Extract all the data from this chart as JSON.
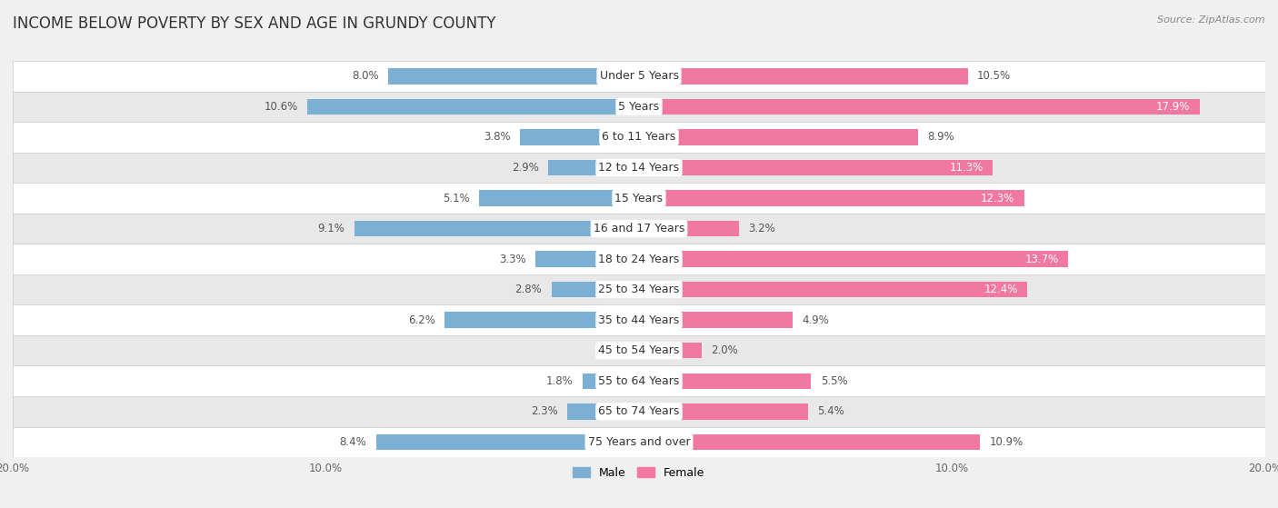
{
  "title": "INCOME BELOW POVERTY BY SEX AND AGE IN GRUNDY COUNTY",
  "source": "Source: ZipAtlas.com",
  "categories": [
    "Under 5 Years",
    "5 Years",
    "6 to 11 Years",
    "12 to 14 Years",
    "15 Years",
    "16 and 17 Years",
    "18 to 24 Years",
    "25 to 34 Years",
    "35 to 44 Years",
    "45 to 54 Years",
    "55 to 64 Years",
    "65 to 74 Years",
    "75 Years and over"
  ],
  "male": [
    8.0,
    10.6,
    3.8,
    2.9,
    5.1,
    9.1,
    3.3,
    2.8,
    6.2,
    0.0,
    1.8,
    2.3,
    8.4
  ],
  "female": [
    10.5,
    17.9,
    8.9,
    11.3,
    12.3,
    3.2,
    13.7,
    12.4,
    4.9,
    2.0,
    5.5,
    5.4,
    10.9
  ],
  "male_color": "#7bafd4",
  "female_color": "#f178a0",
  "male_label": "Male",
  "female_label": "Female",
  "axis_max": 20.0,
  "background_color": "#f0f0f0",
  "row_bg_odd": "#ffffff",
  "row_bg_even": "#e8e8e8",
  "title_fontsize": 12,
  "label_fontsize": 9,
  "value_fontsize": 8.5,
  "inside_label_threshold": 11.0
}
